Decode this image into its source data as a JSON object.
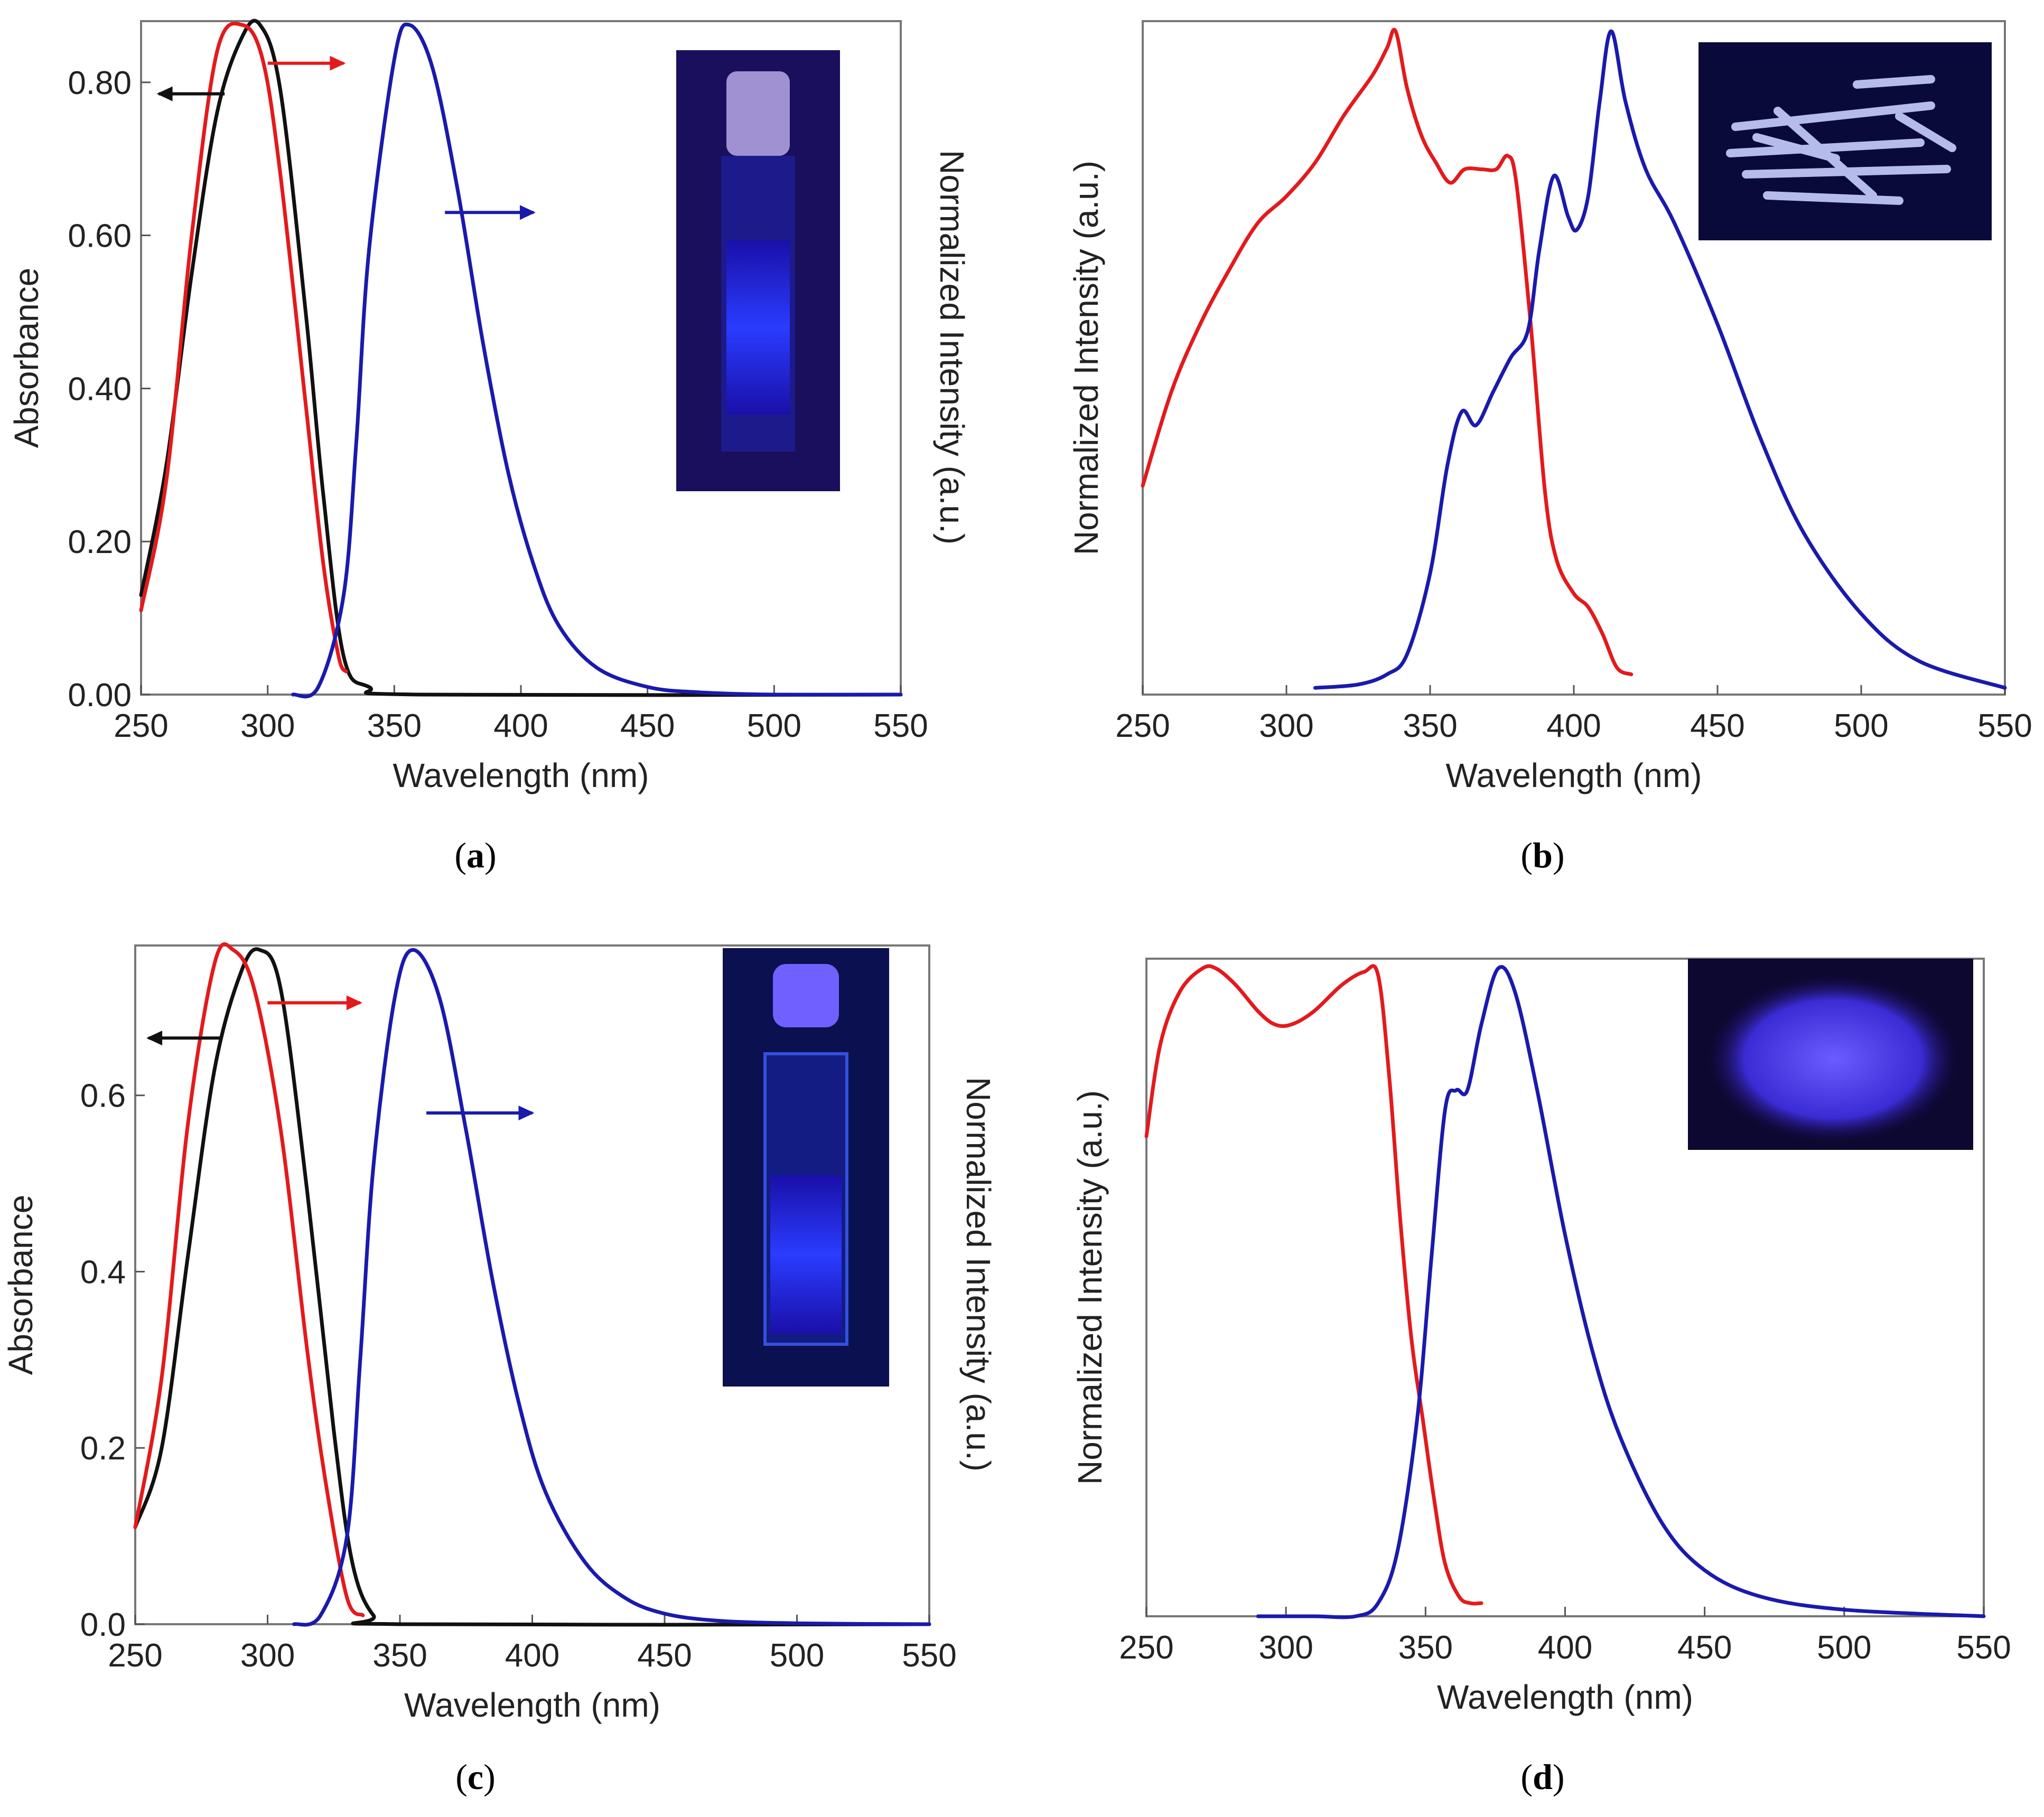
{
  "colors": {
    "absorbance": "#111111",
    "excitation": "#e31a1c",
    "emission": "#1a1aad",
    "axis": "#555555",
    "text": "#222222"
  },
  "captions": [
    "a",
    "b",
    "c",
    "d"
  ],
  "chart_data": [
    {
      "id": "a",
      "type": "line",
      "xlabel": "Wavelength (nm)",
      "ylabel": "Absorbance",
      "ylabel_right": "Normalized Intensity (a.u.)",
      "xlim": [
        250,
        550
      ],
      "ylim": [
        0,
        0.88
      ],
      "xticks": [
        250,
        300,
        350,
        400,
        450,
        500,
        550
      ],
      "yticks": [
        "0.00",
        "0.20",
        "0.40",
        "0.60",
        "0.80"
      ],
      "yticks_values": [
        0,
        0.2,
        0.4,
        0.6,
        0.8
      ],
      "grid": false,
      "inset": "cuvette-photo",
      "series": [
        {
          "name": "absorbance",
          "color_key": "absorbance",
          "x": [
            250,
            260,
            270,
            280,
            290,
            297,
            305,
            315,
            322,
            330,
            340,
            360,
            550
          ],
          "y": [
            0.13,
            0.3,
            0.55,
            0.76,
            0.86,
            0.875,
            0.79,
            0.5,
            0.26,
            0.05,
            0.01,
            0.0,
            0.0
          ]
        },
        {
          "name": "excitation",
          "color_key": "excitation",
          "x": [
            250,
            260,
            270,
            280,
            290,
            298,
            305,
            315,
            322,
            328,
            331
          ],
          "y": [
            0.11,
            0.28,
            0.6,
            0.84,
            0.875,
            0.83,
            0.68,
            0.38,
            0.17,
            0.05,
            0.03
          ]
        },
        {
          "name": "emission",
          "color_key": "emission",
          "x": [
            310,
            320,
            330,
            335,
            340,
            350,
            356,
            365,
            375,
            385,
            395,
            405,
            415,
            430,
            450,
            470,
            500,
            550
          ],
          "y": [
            0.0,
            0.01,
            0.13,
            0.33,
            0.58,
            0.83,
            0.875,
            0.82,
            0.66,
            0.46,
            0.29,
            0.17,
            0.09,
            0.035,
            0.01,
            0.003,
            0.0,
            0.0
          ]
        }
      ],
      "annotations": [
        {
          "text": "",
          "dir": "left",
          "color_key": "absorbance",
          "x0": 283,
          "x1": 257,
          "y": 0.785
        },
        {
          "text": "",
          "dir": "right",
          "color_key": "excitation",
          "x0": 300,
          "x1": 330,
          "y": 0.825
        },
        {
          "text": "",
          "dir": "right",
          "color_key": "emission",
          "x0": 370,
          "x1": 405,
          "y": 0.63
        }
      ]
    },
    {
      "id": "b",
      "type": "line",
      "xlabel": "Wavelength (nm)",
      "ylabel": "Normalized Intensity (a.u.)",
      "ylabel_right": "",
      "xlim": [
        250,
        550
      ],
      "ylim": [
        0,
        1
      ],
      "xticks": [
        250,
        300,
        350,
        400,
        450,
        500,
        550
      ],
      "yticks": [],
      "yticks_values": [],
      "grid": false,
      "inset": "crystals-photo",
      "series": [
        {
          "name": "excitation",
          "color_key": "excitation",
          "x": [
            250,
            260,
            270,
            280,
            290,
            300,
            310,
            320,
            330,
            335,
            338,
            342,
            347,
            352,
            357,
            362,
            368,
            373,
            377,
            380,
            385,
            390,
            394,
            400,
            405,
            410,
            415,
            420
          ],
          "y": [
            0.31,
            0.45,
            0.55,
            0.63,
            0.7,
            0.74,
            0.79,
            0.86,
            0.92,
            0.96,
            0.985,
            0.9,
            0.83,
            0.79,
            0.76,
            0.78,
            0.78,
            0.78,
            0.8,
            0.76,
            0.55,
            0.3,
            0.2,
            0.15,
            0.13,
            0.09,
            0.04,
            0.03
          ]
        },
        {
          "name": "emission",
          "color_key": "emission",
          "x": [
            310,
            325,
            335,
            342,
            350,
            356,
            361,
            366,
            372,
            378,
            384,
            388,
            393,
            398,
            401,
            405,
            409,
            413,
            418,
            425,
            435,
            450,
            465,
            480,
            500,
            520,
            550
          ],
          "y": [
            0.01,
            0.015,
            0.03,
            0.06,
            0.18,
            0.34,
            0.42,
            0.4,
            0.45,
            0.5,
            0.54,
            0.66,
            0.77,
            0.71,
            0.69,
            0.74,
            0.88,
            0.985,
            0.88,
            0.78,
            0.7,
            0.55,
            0.38,
            0.24,
            0.12,
            0.05,
            0.01
          ]
        }
      ],
      "annotations": []
    },
    {
      "id": "c",
      "type": "line",
      "xlabel": "Wavelength (nm)",
      "ylabel": "Absorbance",
      "ylabel_right": "Normalized Intensity (a.u.)",
      "xlim": [
        250,
        550
      ],
      "ylim": [
        0,
        0.77
      ],
      "xticks": [
        250,
        300,
        350,
        400,
        450,
        500,
        550
      ],
      "yticks": [
        "0.0",
        "0.2",
        "0.4",
        "0.6"
      ],
      "yticks_values": [
        0,
        0.2,
        0.4,
        0.6
      ],
      "grid": false,
      "inset": "cuvette-photo",
      "series": [
        {
          "name": "absorbance",
          "color_key": "absorbance",
          "x": [
            250,
            260,
            270,
            280,
            290,
            297,
            305,
            315,
            325,
            332,
            340,
            350,
            550
          ],
          "y": [
            0.11,
            0.2,
            0.42,
            0.63,
            0.74,
            0.765,
            0.72,
            0.49,
            0.22,
            0.07,
            0.01,
            0.0,
            0.0
          ]
        },
        {
          "name": "excitation",
          "color_key": "excitation",
          "x": [
            250,
            260,
            270,
            280,
            287,
            295,
            305,
            315,
            322,
            330,
            336
          ],
          "y": [
            0.11,
            0.28,
            0.57,
            0.75,
            0.765,
            0.72,
            0.56,
            0.31,
            0.16,
            0.03,
            0.01
          ]
        },
        {
          "name": "emission",
          "color_key": "emission",
          "x": [
            310,
            320,
            330,
            335,
            340,
            348,
            355,
            365,
            375,
            385,
            395,
            405,
            420,
            435,
            450,
            470,
            500,
            550
          ],
          "y": [
            0.0,
            0.01,
            0.1,
            0.3,
            0.52,
            0.71,
            0.765,
            0.71,
            0.56,
            0.39,
            0.25,
            0.15,
            0.07,
            0.03,
            0.012,
            0.004,
            0.001,
            0.0
          ]
        }
      ],
      "annotations": [
        {
          "text": "",
          "dir": "left",
          "color_key": "absorbance",
          "x0": 283,
          "x1": 255,
          "y": 0.665
        },
        {
          "text": "",
          "dir": "right",
          "color_key": "excitation",
          "x0": 300,
          "x1": 335,
          "y": 0.705
        },
        {
          "text": "",
          "dir": "right",
          "color_key": "emission",
          "x0": 360,
          "x1": 400,
          "y": 0.58
        }
      ]
    },
    {
      "id": "d",
      "type": "line",
      "xlabel": "Wavelength (nm)",
      "ylabel": "Normalized Intensity (a.u.)",
      "ylabel_right": "",
      "xlim": [
        250,
        550
      ],
      "ylim": [
        0,
        1
      ],
      "xticks": [
        250,
        300,
        350,
        400,
        450,
        500,
        550
      ],
      "yticks": [],
      "yticks_values": [],
      "grid": false,
      "inset": "powder-photo",
      "series": [
        {
          "name": "excitation",
          "color_key": "excitation",
          "x": [
            250,
            255,
            262,
            270,
            275,
            282,
            290,
            296,
            302,
            310,
            320,
            328,
            333,
            337,
            341,
            345,
            349,
            353,
            357,
            362,
            366,
            370
          ],
          "y": [
            0.73,
            0.87,
            0.95,
            0.985,
            0.985,
            0.96,
            0.92,
            0.9,
            0.9,
            0.92,
            0.96,
            0.98,
            0.975,
            0.82,
            0.6,
            0.42,
            0.3,
            0.18,
            0.08,
            0.03,
            0.02,
            0.02
          ]
        },
        {
          "name": "emission",
          "color_key": "emission",
          "x": [
            290,
            310,
            325,
            333,
            340,
            347,
            352,
            357,
            361,
            365,
            370,
            376,
            382,
            390,
            400,
            410,
            420,
            435,
            450,
            470,
            500,
            550
          ],
          "y": [
            0.0,
            0.0,
            0.0,
            0.02,
            0.1,
            0.3,
            0.54,
            0.77,
            0.8,
            0.8,
            0.9,
            0.985,
            0.95,
            0.8,
            0.58,
            0.4,
            0.27,
            0.14,
            0.07,
            0.03,
            0.01,
            0.0
          ]
        }
      ],
      "annotations": []
    }
  ]
}
